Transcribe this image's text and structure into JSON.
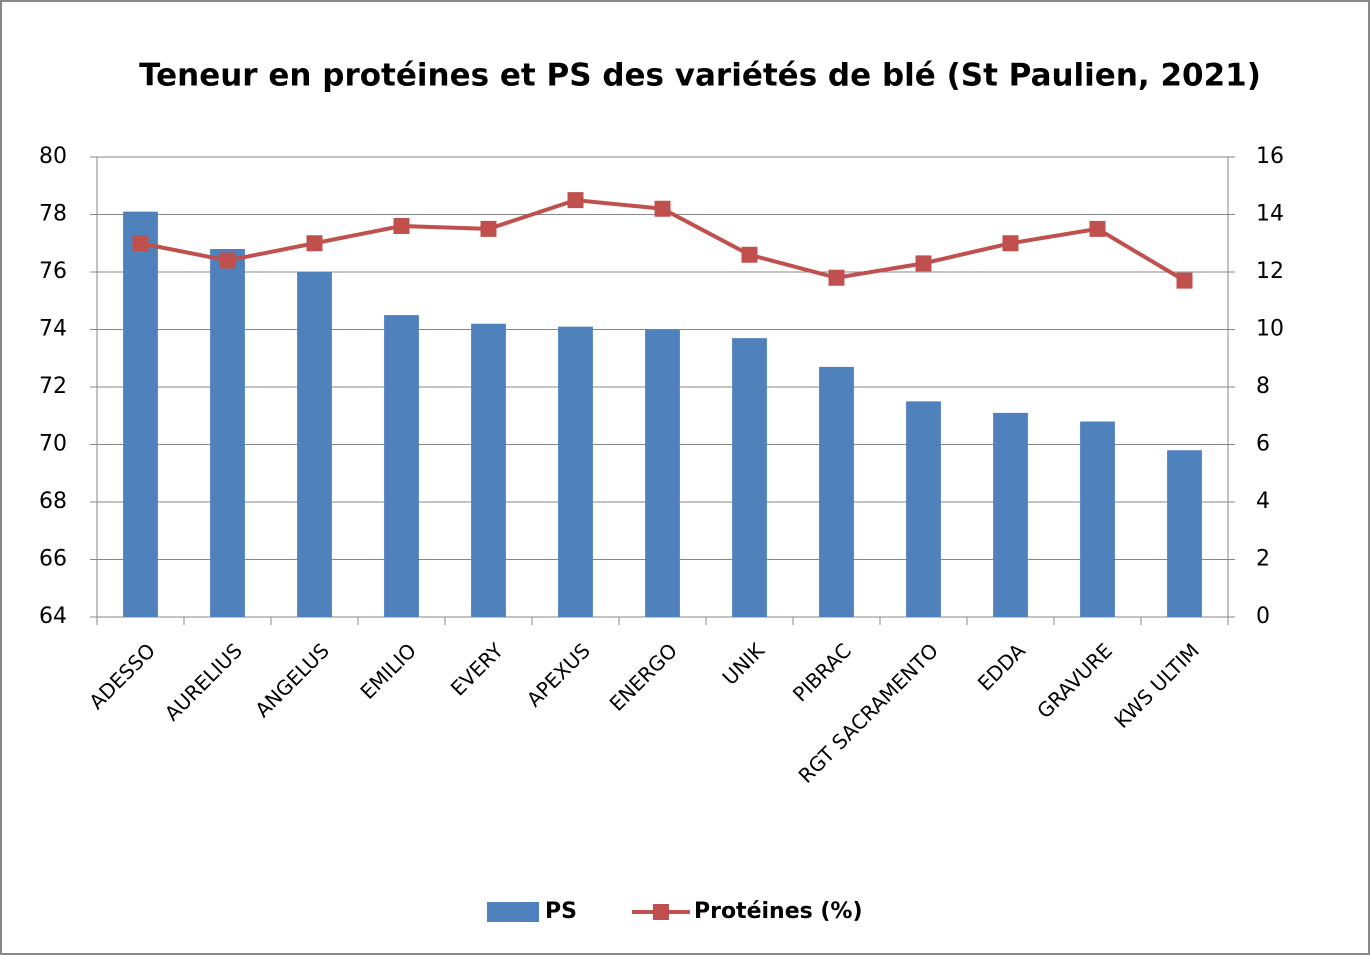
{
  "chart_data": {
    "type": "bar",
    "title": "Teneur en protéines et PS des variétés de blé (St Paulien, 2021)",
    "categories": [
      "ADESSO",
      "AURELIUS",
      "ANGELUS",
      "EMILIO",
      "EVERY",
      "APEXUS",
      "ENERGO",
      "UNIK",
      "PIBRAC",
      "RGT SACRAMENTO",
      "EDDA",
      "GRAVURE",
      "KWS ULTIM"
    ],
    "series": [
      {
        "name": "PS",
        "type": "bar",
        "color": "#4f81bd",
        "values": [
          78.1,
          76.8,
          76.0,
          74.5,
          74.2,
          74.1,
          74.0,
          73.7,
          72.7,
          71.5,
          71.1,
          70.8,
          69.8
        ]
      },
      {
        "name": "Protéines (%)",
        "type": "line",
        "axis": "y2",
        "color": "#c0504d",
        "values": [
          13.0,
          12.4,
          13.0,
          13.6,
          13.5,
          14.5,
          14.2,
          12.6,
          11.8,
          12.3,
          13.0,
          13.5,
          11.7
        ]
      }
    ],
    "ylim": [
      64,
      80
    ],
    "yticks": [
      64,
      66,
      68,
      70,
      72,
      74,
      76,
      78,
      80
    ],
    "y2lim": [
      0,
      16
    ],
    "y2ticks": [
      0,
      2,
      4,
      6,
      8,
      10,
      12,
      14,
      16
    ],
    "grid": true,
    "legend": "bottom"
  }
}
